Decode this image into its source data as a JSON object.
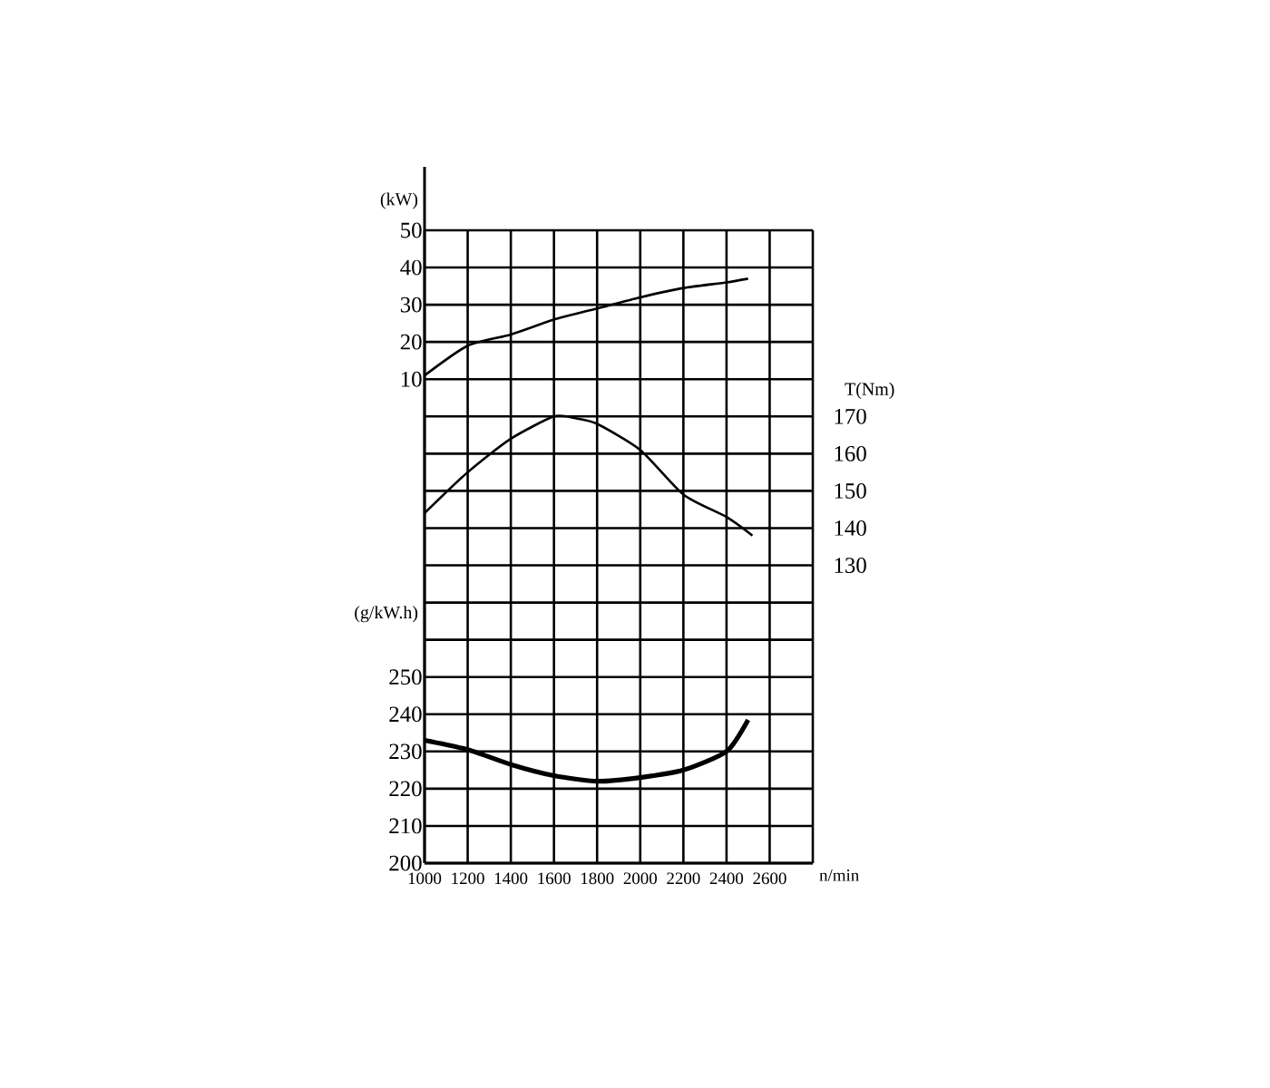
{
  "chart_data": {
    "type": "line",
    "xlabel": "n/min",
    "ylabel": "(g/kW.h)",
    "y2label": "T(Nm)",
    "y3label": "(kW)",
    "xlim": [
      1000,
      2800
    ],
    "xticks": [
      1000,
      1200,
      1400,
      1600,
      1800,
      2000,
      2200,
      2400,
      2600,
      {
        "value": 2800,
        "label": null
      }
    ],
    "ylim": [
      200,
      370
    ],
    "yticks": [
      200,
      210,
      220,
      230,
      240,
      250,
      {
        "value": 260,
        "label": null
      },
      {
        "value": 270,
        "label": null
      },
      {
        "value": 280,
        "label": null
      },
      {
        "value": 290,
        "label": null
      },
      {
        "value": 300,
        "label": null
      },
      {
        "value": 310,
        "label": null
      },
      {
        "value": 320,
        "label": null
      },
      {
        "value": 330,
        "label": null
      },
      {
        "value": 340,
        "label": null
      },
      {
        "value": 350,
        "label": null
      },
      {
        "value": 360,
        "label": null
      },
      {
        "value": 370,
        "label": null
      }
    ],
    "y2lim": [
      50,
      220
    ],
    "y2ticks": [
      130,
      140,
      150,
      160,
      170
    ],
    "y3lim": [
      -120,
      50
    ],
    "y3ticks": [
      10,
      20,
      30,
      40,
      50
    ],
    "grid": true,
    "series": [
      {
        "axis": "y3",
        "color": "#000000",
        "x": [
          1000,
          1200,
          1400,
          1600,
          1800,
          2000,
          2200,
          2400,
          2500
        ],
        "values": [
          11,
          19,
          22,
          26,
          29,
          32,
          34.5,
          36,
          37
        ]
      },
      {
        "axis": "y2",
        "color": "#000000",
        "x": [
          1000,
          1200,
          1400,
          1600,
          1700,
          1800,
          2000,
          2200,
          2400,
          2520
        ],
        "values": [
          144,
          155,
          164,
          170,
          169.5,
          168,
          161,
          149,
          143,
          138
        ]
      },
      {
        "axis": "y",
        "color": "#000000",
        "x": [
          1000,
          1200,
          1400,
          1600,
          1800,
          2000,
          2200,
          2400,
          2500
        ],
        "values": [
          233,
          230.5,
          226.5,
          223.5,
          222,
          223,
          225,
          230,
          238.5
        ]
      }
    ]
  }
}
